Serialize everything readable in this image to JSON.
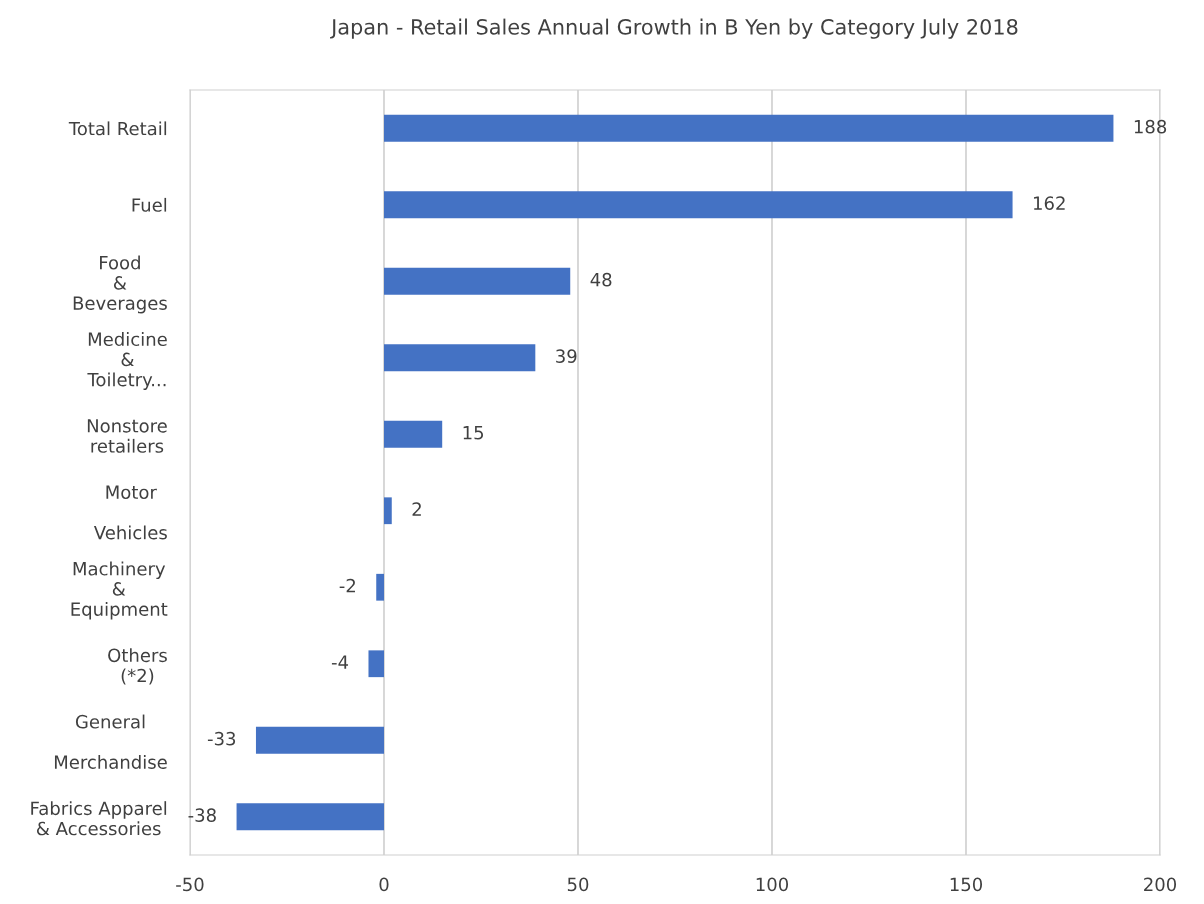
{
  "chart_data": {
    "type": "bar",
    "orientation": "horizontal",
    "title": "Japan - Retail Sales Annual Growth in B Yen by Category July 2018",
    "categories": [
      "Total Retail",
      "Fuel",
      "Food\n&\nBeverages",
      "Medicine\n&\nToiletry...",
      "Nonstore\nretailers",
      "Motor\n\nVehicles",
      "Machinery\n&\nEquipment",
      "Others\n(*2)",
      "General\n\nMerchandise",
      "Fabrics Apparel\n& Accessories"
    ],
    "values": [
      188,
      162,
      48,
      39,
      15,
      2,
      -2,
      -4,
      -33,
      -38
    ],
    "color": "#4472c4",
    "xlim": [
      -50,
      200
    ],
    "xticks": [
      -50,
      0,
      50,
      100,
      150,
      200
    ],
    "grid": "x",
    "data_labels": true
  }
}
